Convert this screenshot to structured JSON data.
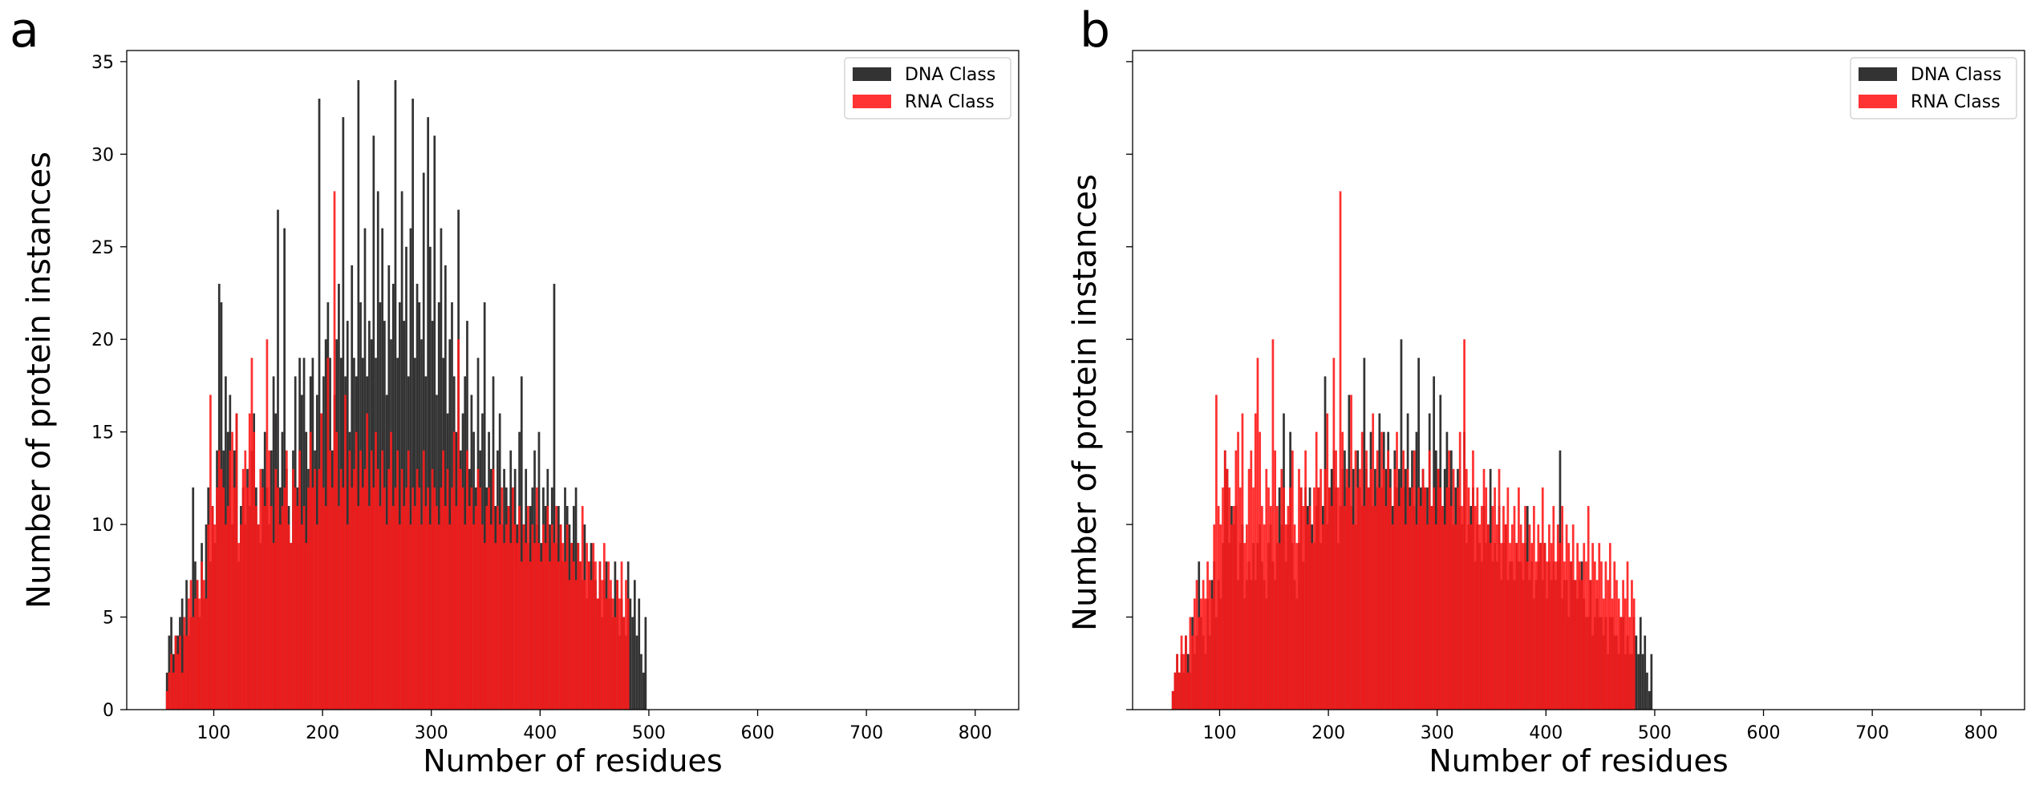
{
  "chart_data": [
    {
      "panel_label": "a",
      "type": "bar",
      "title": "",
      "xlabel": "Number of residues",
      "ylabel": "Number of protein instances",
      "xlim": [
        20,
        840
      ],
      "ylim": [
        0,
        35.6
      ],
      "xticks": [
        "100",
        "200",
        "300",
        "400",
        "500",
        "600",
        "700",
        "800"
      ],
      "xtick_values": [
        100,
        200,
        300,
        400,
        500,
        600,
        700,
        800
      ],
      "yticks": [
        "0",
        "5",
        "10",
        "15",
        "20",
        "25",
        "30",
        "35"
      ],
      "ytick_values": [
        0,
        5,
        10,
        15,
        20,
        25,
        30,
        35
      ],
      "show_yticklabels": true,
      "legend": {
        "placement": "top-right",
        "entries": [
          "DNA Class",
          "RNA Class"
        ]
      },
      "series": [
        {
          "name": "DNA Class",
          "color": "#333333",
          "x_start": 56,
          "bin_width": 2,
          "values": [
            2,
            4,
            5,
            3,
            4,
            4,
            5,
            6,
            4,
            7,
            4,
            5,
            12,
            8,
            7,
            5,
            9,
            6,
            10,
            12,
            8,
            11,
            9,
            14,
            23,
            22,
            14,
            18,
            15,
            17,
            10,
            14,
            16,
            8,
            11,
            12,
            10,
            13,
            11,
            14,
            16,
            12,
            10,
            9,
            13,
            15,
            12,
            10,
            14,
            18,
            16,
            27,
            12,
            15,
            26,
            13,
            11,
            9,
            14,
            18,
            12,
            19,
            17,
            19,
            15,
            13,
            18,
            19,
            14,
            17,
            33,
            16,
            18,
            20,
            22,
            19,
            14,
            17,
            20,
            23,
            19,
            32,
            18,
            21,
            15,
            24,
            19,
            18,
            34,
            22,
            19,
            26,
            18,
            21,
            20,
            31,
            19,
            28,
            22,
            26,
            21,
            17,
            24,
            20,
            23,
            34,
            19,
            22,
            28,
            21,
            25,
            18,
            26,
            33,
            19,
            23,
            22,
            20,
            29,
            18,
            32,
            25,
            21,
            31,
            17,
            22,
            26,
            19,
            24,
            16,
            20,
            22,
            18,
            15,
            27,
            14,
            16,
            18,
            21,
            13,
            17,
            15,
            12,
            19,
            14,
            16,
            22,
            12,
            15,
            13,
            18,
            11,
            14,
            16,
            10,
            13,
            12,
            11,
            14,
            12,
            13,
            10,
            15,
            18,
            10,
            13,
            9,
            11,
            12,
            14,
            10,
            15,
            9,
            12,
            11,
            13,
            10,
            12,
            23,
            9,
            11,
            10,
            8,
            12,
            11,
            10,
            9,
            11,
            12,
            9,
            8,
            7,
            10,
            6,
            8,
            9,
            8,
            7,
            6,
            8,
            5,
            7,
            8,
            6,
            6,
            5,
            8,
            7,
            4,
            6,
            5,
            4,
            8,
            6,
            5,
            7,
            4,
            6,
            3,
            2,
            5
          ]
        },
        {
          "name": "RNA Class",
          "color": "#ff1a1a",
          "x_start": 56,
          "bin_width": 2,
          "values": [
            1,
            2,
            3,
            2,
            4,
            3,
            4,
            2,
            5,
            4,
            6,
            7,
            5,
            6,
            7,
            6,
            8,
            7,
            6,
            10,
            17,
            11,
            10,
            12,
            14,
            13,
            12,
            10,
            11,
            14,
            15,
            12,
            16,
            9,
            10,
            13,
            14,
            12,
            16,
            19,
            15,
            11,
            10,
            13,
            12,
            11,
            20,
            14,
            11,
            9,
            13,
            12,
            10,
            11,
            12,
            14,
            10,
            9,
            13,
            12,
            11,
            14,
            10,
            11,
            9,
            12,
            15,
            12,
            13,
            10,
            13,
            16,
            12,
            11,
            19,
            14,
            12,
            28,
            15,
            11,
            13,
            12,
            17,
            10,
            14,
            12,
            13,
            15,
            11,
            14,
            12,
            13,
            16,
            11,
            14,
            12,
            15,
            13,
            11,
            14,
            12,
            10,
            13,
            15,
            11,
            12,
            14,
            10,
            13,
            11,
            12,
            14,
            10,
            12,
            11,
            13,
            12,
            10,
            14,
            11,
            12,
            10,
            13,
            12,
            11,
            10,
            12,
            14,
            11,
            13,
            10,
            12,
            15,
            11,
            20,
            13,
            12,
            10,
            14,
            11,
            12,
            10,
            11,
            13,
            12,
            10,
            9,
            11,
            12,
            10,
            13,
            9,
            11,
            10,
            12,
            9,
            10,
            11,
            9,
            12,
            10,
            9,
            11,
            8,
            10,
            9,
            11,
            8,
            10,
            9,
            12,
            9,
            8,
            10,
            9,
            11,
            8,
            10,
            9,
            11,
            8,
            10,
            9,
            8,
            10,
            7,
            9,
            8,
            7,
            9,
            8,
            11,
            7,
            9,
            8,
            7,
            9,
            8,
            6,
            8,
            7,
            9,
            6,
            8,
            7,
            6,
            5,
            7,
            6,
            8,
            5,
            7,
            6
          ]
        }
      ]
    },
    {
      "panel_label": "b",
      "type": "bar",
      "title": "",
      "xlabel": "Number of residues",
      "ylabel": "Number of protein instances",
      "xlim": [
        20,
        840
      ],
      "ylim": [
        0,
        35.6
      ],
      "xticks": [
        "100",
        "200",
        "300",
        "400",
        "500",
        "600",
        "700",
        "800"
      ],
      "xtick_values": [
        100,
        200,
        300,
        400,
        500,
        600,
        700,
        800
      ],
      "yticks": [
        "",
        "",
        "",
        "",
        "",
        "",
        "",
        ""
      ],
      "ytick_values": [
        0,
        5,
        10,
        15,
        20,
        25,
        30,
        35
      ],
      "show_yticklabels": false,
      "legend": {
        "placement": "top-right",
        "entries": [
          "DNA Class",
          "RNA Class"
        ]
      },
      "series": [
        {
          "name": "DNA Class",
          "color": "#333333",
          "x_start": 56,
          "bin_width": 2,
          "values": [
            1,
            2,
            3,
            2,
            3,
            2,
            4,
            3,
            2,
            5,
            3,
            4,
            8,
            5,
            4,
            3,
            6,
            4,
            7,
            8,
            5,
            7,
            6,
            9,
            14,
            13,
            9,
            11,
            10,
            11,
            7,
            9,
            10,
            6,
            7,
            8,
            7,
            9,
            7,
            9,
            10,
            8,
            7,
            6,
            9,
            10,
            8,
            7,
            9,
            12,
            10,
            16,
            8,
            10,
            15,
            9,
            7,
            6,
            9,
            12,
            8,
            12,
            11,
            12,
            10,
            9,
            11,
            12,
            9,
            11,
            18,
            10,
            12,
            13,
            14,
            12,
            9,
            11,
            13,
            14,
            12,
            17,
            11,
            13,
            10,
            14,
            12,
            11,
            19,
            13,
            12,
            15,
            11,
            13,
            12,
            16,
            12,
            15,
            13,
            15,
            13,
            11,
            14,
            12,
            13,
            20,
            12,
            13,
            16,
            12,
            14,
            11,
            15,
            19,
            12,
            13,
            12,
            12,
            16,
            11,
            18,
            14,
            13,
            17,
            11,
            13,
            15,
            12,
            14,
            10,
            12,
            13,
            11,
            10,
            15,
            9,
            10,
            11,
            12,
            8,
            10,
            9,
            8,
            11,
            9,
            10,
            13,
            8,
            9,
            8,
            11,
            7,
            9,
            10,
            7,
            8,
            8,
            7,
            9,
            8,
            8,
            7,
            9,
            11,
            7,
            8,
            6,
            7,
            8,
            9,
            7,
            9,
            6,
            8,
            7,
            8,
            7,
            8,
            14,
            6,
            7,
            7,
            5,
            8,
            7,
            7,
            6,
            7,
            8,
            6,
            5,
            5,
            7,
            4,
            5,
            6,
            5,
            5,
            4,
            5,
            3,
            5,
            5,
            4,
            4,
            3,
            5,
            5,
            3,
            4,
            3,
            3,
            5,
            4,
            3,
            5,
            3,
            4,
            2,
            1,
            3
          ]
        },
        {
          "name": "RNA Class",
          "color": "#ff1a1a",
          "x_start": 56,
          "bin_width": 2,
          "values": [
            1,
            2,
            3,
            2,
            4,
            3,
            4,
            2,
            5,
            4,
            6,
            7,
            5,
            6,
            7,
            6,
            8,
            7,
            6,
            10,
            17,
            11,
            10,
            12,
            14,
            13,
            12,
            10,
            11,
            14,
            15,
            12,
            16,
            9,
            10,
            13,
            14,
            12,
            16,
            19,
            15,
            11,
            10,
            13,
            12,
            11,
            20,
            14,
            11,
            9,
            13,
            12,
            10,
            11,
            12,
            14,
            10,
            9,
            13,
            12,
            11,
            14,
            10,
            11,
            9,
            12,
            15,
            12,
            13,
            10,
            13,
            16,
            12,
            11,
            19,
            14,
            12,
            28,
            15,
            11,
            13,
            12,
            17,
            10,
            14,
            12,
            13,
            15,
            11,
            14,
            12,
            13,
            16,
            11,
            14,
            12,
            15,
            13,
            11,
            14,
            12,
            10,
            13,
            15,
            11,
            12,
            14,
            10,
            13,
            11,
            12,
            14,
            10,
            12,
            11,
            13,
            12,
            10,
            14,
            11,
            12,
            10,
            13,
            12,
            11,
            10,
            12,
            14,
            11,
            13,
            10,
            12,
            15,
            11,
            20,
            13,
            12,
            10,
            14,
            11,
            12,
            10,
            11,
            13,
            12,
            10,
            9,
            11,
            12,
            10,
            13,
            9,
            11,
            10,
            12,
            9,
            10,
            11,
            9,
            12,
            10,
            9,
            11,
            8,
            10,
            9,
            11,
            8,
            10,
            9,
            12,
            9,
            8,
            10,
            9,
            11,
            8,
            10,
            9,
            11,
            8,
            10,
            9,
            8,
            10,
            7,
            9,
            8,
            7,
            9,
            8,
            11,
            7,
            9,
            8,
            7,
            9,
            8,
            6,
            8,
            7,
            9,
            6,
            8,
            7,
            6,
            5,
            7,
            6,
            8,
            5,
            7,
            6
          ]
        }
      ]
    }
  ]
}
